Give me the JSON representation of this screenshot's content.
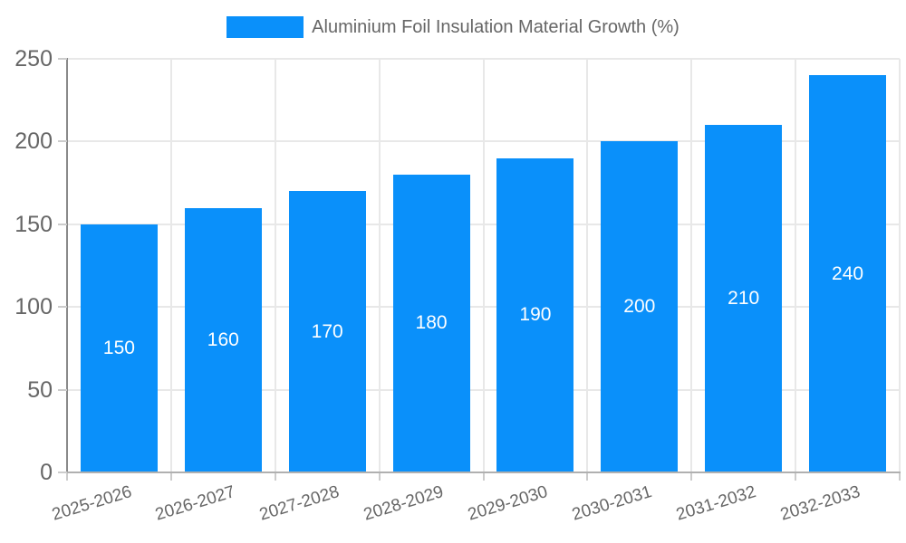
{
  "chart_data": {
    "type": "bar",
    "title": "Aluminium Foil Insulation Material Growth (%)",
    "legend": {
      "label": "Aluminium Foil Insulation Material Growth (%)",
      "position": "top-center"
    },
    "categories": [
      "2025-2026",
      "2026-2027",
      "2027-2028",
      "2028-2029",
      "2029-2030",
      "2030-2031",
      "2031-2032",
      "2032-2033"
    ],
    "values": [
      150,
      160,
      170,
      180,
      190,
      200,
      210,
      240
    ],
    "xlabel": "",
    "ylabel": "",
    "ylim": [
      0,
      250
    ],
    "yticks": [
      0,
      50,
      100,
      150,
      200,
      250
    ],
    "grid": true,
    "x_label_rotation_deg": -17,
    "value_labels": "centered-inside-bars",
    "colors": {
      "bar": "#0a90fa",
      "value_label": "#ffffff",
      "axis_text": "#666666",
      "gridline": "#e8e8e8",
      "tick": "#cccccc",
      "y_axis_line": "#8a8a8a",
      "x_axis_line": "#b0b0b0",
      "background": "#ffffff"
    }
  }
}
